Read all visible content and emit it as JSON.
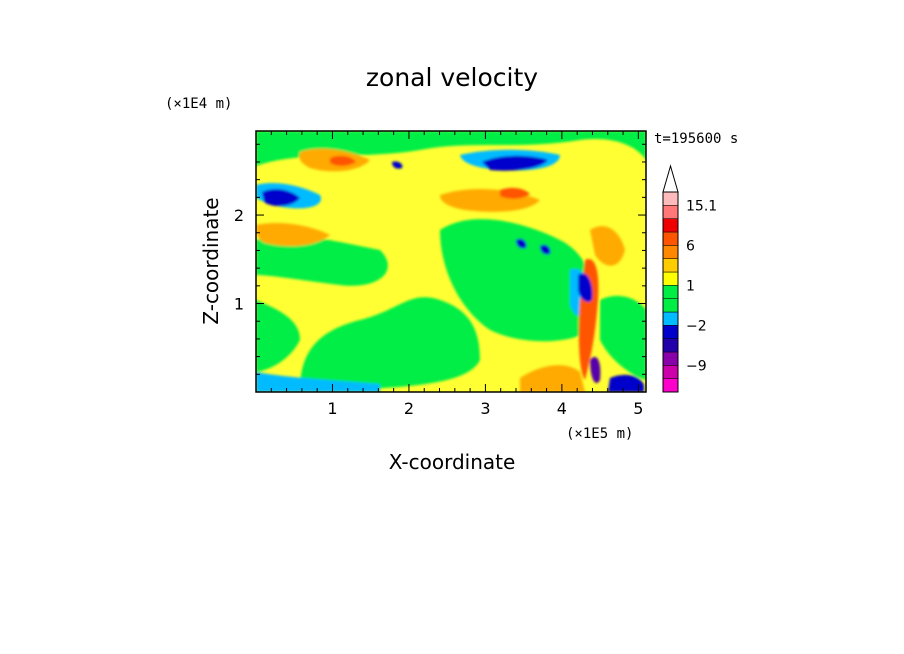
{
  "chart_data": {
    "type": "heatmap",
    "title": "zonal velocity",
    "xlabel": "X-coordinate",
    "ylabel": "Z-coordinate",
    "x_unit": "(×1E5 m)",
    "y_unit": "(×1E4 m)",
    "time_label": "t=195600 s",
    "xlim": [
      0,
      5.1
    ],
    "ylim": [
      0,
      2.95
    ],
    "x_ticks": [
      "1",
      "2",
      "3",
      "4",
      "5"
    ],
    "y_ticks": [
      "1",
      "2"
    ],
    "colorbar": {
      "labels": [
        "15.1",
        "6",
        "1",
        "−2",
        "−9"
      ],
      "levels": [
        -15,
        -12,
        -9,
        -6,
        -4,
        -2,
        -1,
        0,
        1,
        2,
        4,
        6,
        9,
        12,
        15.1
      ],
      "colors": [
        "#ff00cc",
        "#cc00aa",
        "#8800aa",
        "#2200aa",
        "#0000cc",
        "#00bbff",
        "#00ee44",
        "#00ee44",
        "#ffff00",
        "#ffcc00",
        "#ff8800",
        "#ff5500",
        "#ee0000",
        "#ff7777",
        "#ffbbbb"
      ],
      "extend": "max"
    }
  }
}
